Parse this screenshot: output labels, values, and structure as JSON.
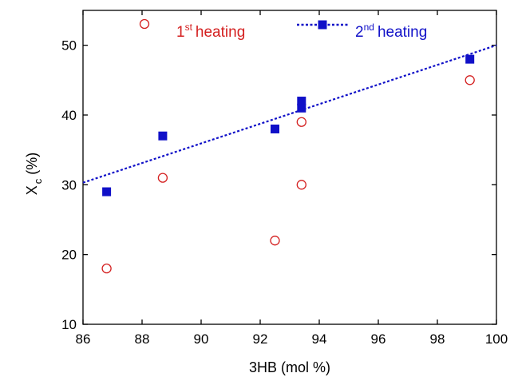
{
  "chart_data": {
    "type": "scatter",
    "xlabel": "3HB (mol %)",
    "ylabel": "X",
    "ylabel_sub": "c",
    "ylabel_unit": "(%)",
    "xlim": [
      86,
      100
    ],
    "ylim": [
      10,
      55
    ],
    "xticks": [
      86,
      88,
      90,
      92,
      94,
      96,
      98,
      100
    ],
    "yticks": [
      10,
      20,
      30,
      40,
      50
    ],
    "legend_position": "top",
    "colors": {
      "first": "#d42020",
      "second": "#1010c8"
    },
    "series": [
      {
        "name": "1st heating",
        "legend_base": "1",
        "legend_sup": "st",
        "legend_rest": "heating",
        "marker": "open-circle",
        "x": [
          86.8,
          88.7,
          92.5,
          93.4,
          93.4,
          99.1
        ],
        "y": [
          18,
          31,
          22,
          30,
          39,
          45
        ]
      },
      {
        "name": "2nd heating",
        "legend_base": "2",
        "legend_sup": "nd",
        "legend_rest": "heating",
        "marker": "filled-square",
        "x": [
          86.8,
          88.7,
          92.5,
          93.4,
          93.4,
          99.1
        ],
        "y": [
          29,
          37,
          38,
          41,
          42,
          48
        ],
        "fit": {
          "x": [
            86,
            100
          ],
          "y": [
            30.3,
            50
          ]
        }
      }
    ]
  }
}
